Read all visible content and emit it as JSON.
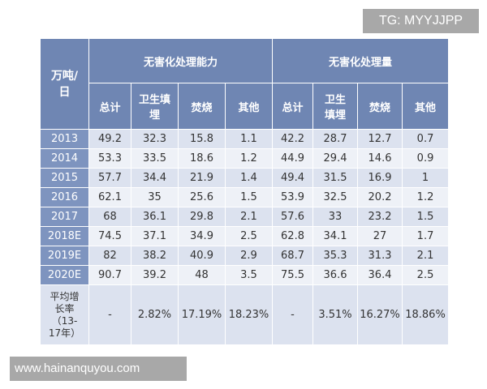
{
  "watermarks": {
    "top": "TG: MYYJJPP",
    "bottom": "www.hainanquyou.com"
  },
  "table": {
    "corner_label": "万吨/\n日",
    "group_headers": [
      "无害化处理能力",
      "无害化处理量"
    ],
    "sub_headers": [
      "总计",
      "卫生填埋",
      "焚烧",
      "其他",
      "总计",
      "卫生填埋",
      "焚烧",
      "其他"
    ],
    "rows": [
      {
        "year": "2013",
        "values": [
          "49.2",
          "32.3",
          "15.8",
          "1.1",
          "42.2",
          "28.7",
          "12.7",
          "0.7"
        ]
      },
      {
        "year": "2014",
        "values": [
          "53.3",
          "33.5",
          "18.6",
          "1.2",
          "44.9",
          "29.4",
          "14.6",
          "0.9"
        ]
      },
      {
        "year": "2015",
        "values": [
          "57.7",
          "34.4",
          "21.9",
          "1.4",
          "49.4",
          "31.5",
          "16.9",
          "1"
        ]
      },
      {
        "year": "2016",
        "values": [
          "62.1",
          "35",
          "25.6",
          "1.5",
          "53.9",
          "32.5",
          "20.2",
          "1.2"
        ]
      },
      {
        "year": "2017",
        "values": [
          "68",
          "36.1",
          "29.8",
          "2.1",
          "57.6",
          "33",
          "23.2",
          "1.5"
        ]
      },
      {
        "year": "2018E",
        "values": [
          "74.5",
          "37.1",
          "34.9",
          "2.5",
          "62.8",
          "34.1",
          "27",
          "1.7"
        ]
      },
      {
        "year": "2019E",
        "values": [
          "82",
          "38.2",
          "40.9",
          "2.9",
          "68.7",
          "35.3",
          "31.3",
          "2.1"
        ]
      },
      {
        "year": "2020E",
        "values": [
          "90.7",
          "39.2",
          "48",
          "3.5",
          "75.5",
          "36.6",
          "36.4",
          "2.5"
        ]
      }
    ],
    "avg_row": {
      "label": "平均增\n长率\n（13-\n17年）",
      "values": [
        "-",
        "2.82%",
        "17.19%",
        "18.23%",
        "-",
        "3.51%",
        "16.27%",
        "18.86%"
      ]
    }
  }
}
